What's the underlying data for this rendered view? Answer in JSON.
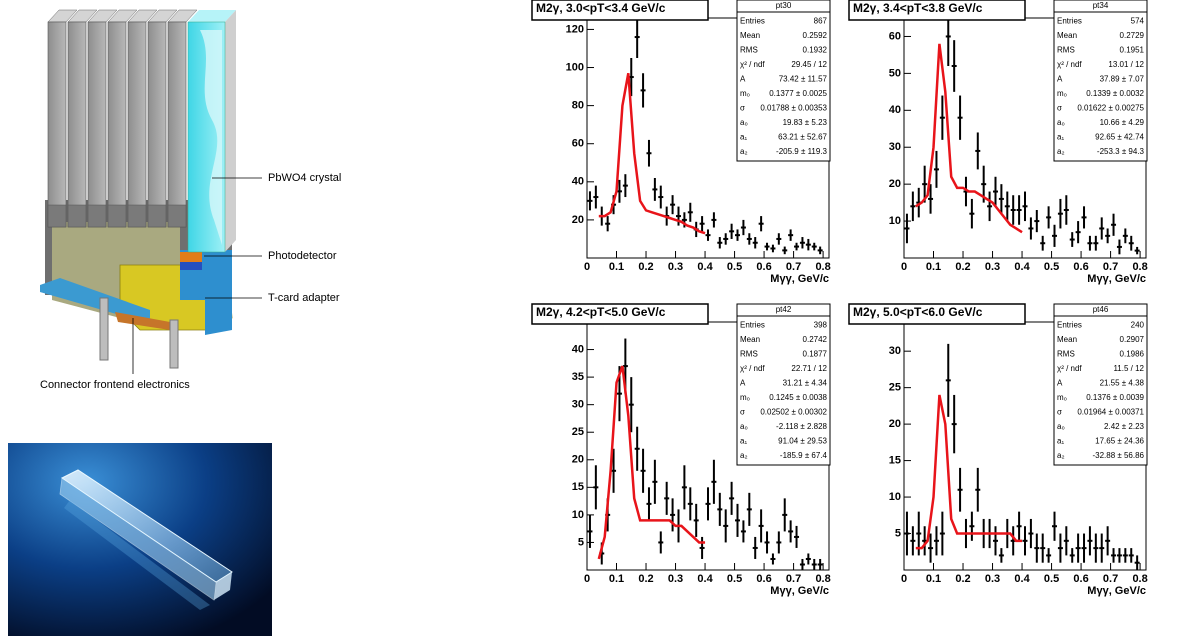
{
  "diagram": {
    "labels": [
      "PbWO4 crystal",
      "Photodetector",
      "T-card adapter",
      "Connector frontend electronics"
    ]
  },
  "chart_data": [
    {
      "type": "scatter",
      "title": "M2γ, 3.0<pT<3.4 GeV/c",
      "xlabel": "Mγγ, GeV/c",
      "stats_title": "pt30",
      "stats": [
        {
          "label": "Entries",
          "value": "867"
        },
        {
          "label": "Mean",
          "value": "0.2592"
        },
        {
          "label": "RMS",
          "value": "0.1932"
        },
        {
          "label": "χ² / ndf",
          "value": "29.45 / 12"
        },
        {
          "label": "A",
          "value": "73.42 ± 11.57"
        },
        {
          "label": "m₀",
          "value": "0.1377 ± 0.0025"
        },
        {
          "label": "σ",
          "value": "0.01788 ± 0.00353"
        },
        {
          "label": "a₀",
          "value": "19.83 ± 5.23"
        },
        {
          "label": "a₁",
          "value": "63.21 ± 52.67"
        },
        {
          "label": "a₂",
          "value": "-205.9 ± 119.3"
        }
      ],
      "xlim": [
        0,
        0.82
      ],
      "xticks": [
        0,
        0.1,
        0.2,
        0.3,
        0.4,
        0.5,
        0.6,
        0.7,
        0.8
      ],
      "ylim": [
        0,
        126
      ],
      "yticks": [
        20,
        40,
        60,
        80,
        100,
        120
      ],
      "x": [
        0.01,
        0.03,
        0.05,
        0.07,
        0.09,
        0.11,
        0.13,
        0.15,
        0.17,
        0.19,
        0.21,
        0.23,
        0.25,
        0.27,
        0.29,
        0.31,
        0.33,
        0.35,
        0.37,
        0.39,
        0.41,
        0.43,
        0.45,
        0.47,
        0.49,
        0.51,
        0.53,
        0.55,
        0.57,
        0.59,
        0.61,
        0.63,
        0.65,
        0.67,
        0.69,
        0.71,
        0.73,
        0.75,
        0.77,
        0.79
      ],
      "series": [
        {
          "color": "#000000",
          "values": [
            30,
            32,
            22,
            18,
            28,
            35,
            38,
            95,
            116,
            88,
            55,
            36,
            32,
            22,
            28,
            22,
            20,
            24,
            15,
            18,
            12,
            20,
            8,
            10,
            14,
            12,
            16,
            10,
            8,
            18,
            6,
            5,
            10,
            4,
            12,
            6,
            8,
            7,
            6,
            4
          ],
          "errors": [
            5,
            6,
            5,
            4,
            5,
            6,
            6,
            10,
            11,
            9,
            7,
            6,
            6,
            5,
            5,
            5,
            4,
            5,
            4,
            4,
            3,
            4,
            3,
            3,
            4,
            3,
            4,
            3,
            3,
            4,
            2,
            2,
            3,
            2,
            3,
            2,
            3,
            3,
            2,
            2
          ]
        }
      ],
      "fit": {
        "color": "#e8141a",
        "x": [
          0.04,
          0.06,
          0.08,
          0.1,
          0.12,
          0.14,
          0.16,
          0.18,
          0.2,
          0.22,
          0.24,
          0.26,
          0.28,
          0.3,
          0.32,
          0.34,
          0.36,
          0.38,
          0.4
        ],
        "values": [
          22,
          22,
          24,
          35,
          80,
          97,
          55,
          30,
          25,
          24,
          23,
          22,
          21,
          20,
          19,
          17,
          16,
          14,
          13
        ]
      }
    },
    {
      "type": "scatter",
      "title": "M2γ, 3.4<pT<3.8 GeV/c",
      "xlabel": "Mγγ, GeV/c",
      "stats_title": "pt34",
      "stats": [
        {
          "label": "Entries",
          "value": "574"
        },
        {
          "label": "Mean",
          "value": "0.2729"
        },
        {
          "label": "RMS",
          "value": "0.1951"
        },
        {
          "label": "χ² / ndf",
          "value": "13.01 / 12"
        },
        {
          "label": "A",
          "value": "37.89 ± 7.07"
        },
        {
          "label": "m₀",
          "value": "0.1339 ± 0.0032"
        },
        {
          "label": "σ",
          "value": "0.01622 ± 0.00275"
        },
        {
          "label": "a₀",
          "value": "10.66 ± 4.29"
        },
        {
          "label": "a₁",
          "value": "92.65 ± 42.74"
        },
        {
          "label": "a₂",
          "value": "-253.3 ± 94.3"
        }
      ],
      "xlim": [
        0,
        0.82
      ],
      "xticks": [
        0,
        0.1,
        0.2,
        0.3,
        0.4,
        0.5,
        0.6,
        0.7,
        0.8
      ],
      "ylim": [
        0,
        65
      ],
      "yticks": [
        10,
        20,
        30,
        40,
        50,
        60
      ],
      "x": [
        0.01,
        0.03,
        0.05,
        0.07,
        0.09,
        0.11,
        0.13,
        0.15,
        0.17,
        0.19,
        0.21,
        0.23,
        0.25,
        0.27,
        0.29,
        0.31,
        0.33,
        0.35,
        0.37,
        0.39,
        0.41,
        0.43,
        0.45,
        0.47,
        0.49,
        0.51,
        0.53,
        0.55,
        0.57,
        0.59,
        0.61,
        0.63,
        0.65,
        0.67,
        0.69,
        0.71,
        0.73,
        0.75,
        0.77,
        0.79
      ],
      "series": [
        {
          "color": "#000000",
          "values": [
            8,
            14,
            15,
            20,
            16,
            24,
            38,
            60,
            52,
            38,
            18,
            12,
            29,
            20,
            14,
            18,
            16,
            14,
            13,
            13,
            14,
            8,
            10,
            4,
            11,
            6,
            12,
            13,
            5,
            7,
            11,
            4,
            4,
            8,
            6,
            9,
            3,
            6,
            4,
            2
          ],
          "errors": [
            4,
            4,
            4,
            5,
            4,
            5,
            6,
            8,
            7,
            6,
            4,
            4,
            5,
            5,
            4,
            4,
            4,
            4,
            4,
            4,
            4,
            3,
            3,
            2,
            3,
            3,
            4,
            4,
            2,
            3,
            3,
            2,
            2,
            3,
            2,
            3,
            2,
            2,
            2,
            1
          ]
        }
      ],
      "fit": {
        "color": "#e8141a",
        "x": [
          0.04,
          0.06,
          0.08,
          0.1,
          0.12,
          0.14,
          0.16,
          0.18,
          0.2,
          0.22,
          0.24,
          0.26,
          0.28,
          0.3,
          0.32,
          0.34,
          0.36,
          0.38,
          0.4
        ],
        "values": [
          14,
          15,
          17,
          30,
          58,
          45,
          22,
          19,
          19,
          18,
          18,
          17,
          16,
          15,
          13,
          11,
          9,
          8,
          7
        ]
      }
    },
    {
      "type": "scatter",
      "title": "M2γ, 4.2<pT<5.0 GeV/c",
      "xlabel": "Mγγ, GeV/c",
      "stats_title": "pt42",
      "stats": [
        {
          "label": "Entries",
          "value": "398"
        },
        {
          "label": "Mean",
          "value": "0.2742"
        },
        {
          "label": "RMS",
          "value": "0.1877"
        },
        {
          "label": "χ² / ndf",
          "value": "22.71 / 12"
        },
        {
          "label": "A",
          "value": "31.21 ± 4.34"
        },
        {
          "label": "m₀",
          "value": "0.1245 ± 0.0038"
        },
        {
          "label": "σ",
          "value": "0.02502 ± 0.00302"
        },
        {
          "label": "a₀",
          "value": "-2.118 ± 2.828"
        },
        {
          "label": "a₁",
          "value": "91.04 ± 29.53"
        },
        {
          "label": "a₂",
          "value": "-185.9 ± 67.4"
        }
      ],
      "xlim": [
        0,
        0.82
      ],
      "xticks": [
        0,
        0.1,
        0.2,
        0.3,
        0.4,
        0.5,
        0.6,
        0.7,
        0.8
      ],
      "ylim": [
        0,
        45
      ],
      "yticks": [
        5,
        10,
        15,
        20,
        25,
        30,
        35,
        40
      ],
      "x": [
        0.01,
        0.03,
        0.05,
        0.07,
        0.09,
        0.11,
        0.13,
        0.15,
        0.17,
        0.19,
        0.21,
        0.23,
        0.25,
        0.27,
        0.29,
        0.31,
        0.33,
        0.35,
        0.37,
        0.39,
        0.41,
        0.43,
        0.45,
        0.47,
        0.49,
        0.51,
        0.53,
        0.55,
        0.57,
        0.59,
        0.61,
        0.63,
        0.65,
        0.67,
        0.69,
        0.71,
        0.73,
        0.75,
        0.77,
        0.79
      ],
      "series": [
        {
          "color": "#000000",
          "values": [
            7,
            15,
            3,
            10,
            18,
            32,
            37,
            30,
            22,
            18,
            12,
            16,
            5,
            13,
            10,
            8,
            15,
            12,
            9,
            4,
            12,
            16,
            11,
            8,
            13,
            9,
            7,
            11,
            4,
            8,
            5,
            2,
            5,
            10,
            7,
            6,
            1,
            2,
            1,
            1
          ],
          "errors": [
            3,
            4,
            2,
            3,
            4,
            5,
            5,
            5,
            4,
            4,
            3,
            4,
            2,
            3,
            3,
            3,
            4,
            3,
            3,
            2,
            3,
            4,
            3,
            3,
            3,
            3,
            2,
            3,
            2,
            3,
            2,
            1,
            2,
            3,
            2,
            2,
            1,
            1,
            1,
            1
          ]
        }
      ],
      "fit": {
        "color": "#e8141a",
        "x": [
          0.04,
          0.06,
          0.08,
          0.1,
          0.12,
          0.14,
          0.16,
          0.18,
          0.2,
          0.22,
          0.24,
          0.26,
          0.28,
          0.3,
          0.32,
          0.34,
          0.36,
          0.38,
          0.4
        ],
        "values": [
          2,
          6,
          18,
          34,
          37,
          28,
          13,
          9,
          9,
          9,
          9,
          9,
          9,
          8,
          8,
          7,
          6,
          5,
          5
        ]
      }
    },
    {
      "type": "scatter",
      "title": "M2γ, 5.0<pT<6.0 GeV/c",
      "xlabel": "Mγγ, GeV/c",
      "stats_title": "pt46",
      "stats": [
        {
          "label": "Entries",
          "value": "240"
        },
        {
          "label": "Mean",
          "value": "0.2907"
        },
        {
          "label": "RMS",
          "value": "0.1986"
        },
        {
          "label": "χ² / ndf",
          "value": "11.5 / 12"
        },
        {
          "label": "A",
          "value": "21.55 ± 4.38"
        },
        {
          "label": "m₀",
          "value": "0.1376 ± 0.0039"
        },
        {
          "label": "σ",
          "value": "0.01964 ± 0.00371"
        },
        {
          "label": "a₀",
          "value": "2.42 ± 2.23"
        },
        {
          "label": "a₁",
          "value": "17.65 ± 24.36"
        },
        {
          "label": "a₂",
          "value": "-32.88 ± 56.86"
        }
      ],
      "xlim": [
        0,
        0.82
      ],
      "xticks": [
        0,
        0.1,
        0.2,
        0.3,
        0.4,
        0.5,
        0.6,
        0.7,
        0.8
      ],
      "ylim": [
        0,
        34
      ],
      "yticks": [
        5,
        10,
        15,
        20,
        25,
        30
      ],
      "x": [
        0.01,
        0.03,
        0.05,
        0.07,
        0.09,
        0.11,
        0.13,
        0.15,
        0.17,
        0.19,
        0.21,
        0.23,
        0.25,
        0.27,
        0.29,
        0.31,
        0.33,
        0.35,
        0.37,
        0.39,
        0.41,
        0.43,
        0.45,
        0.47,
        0.49,
        0.51,
        0.53,
        0.55,
        0.57,
        0.59,
        0.61,
        0.63,
        0.65,
        0.67,
        0.69,
        0.71,
        0.73,
        0.75,
        0.77,
        0.79
      ],
      "series": [
        {
          "color": "#000000",
          "values": [
            5,
            4,
            5,
            4,
            3,
            4,
            5,
            26,
            20,
            11,
            5,
            6,
            11,
            5,
            5,
            4,
            2,
            5,
            4,
            6,
            4,
            5,
            3,
            3,
            2,
            6,
            3,
            4,
            2,
            3,
            3,
            4,
            3,
            3,
            4,
            2,
            2,
            2,
            2,
            1
          ],
          "errors": [
            3,
            2,
            3,
            2,
            2,
            2,
            3,
            5,
            4,
            3,
            2,
            2,
            3,
            2,
            2,
            2,
            1,
            2,
            2,
            2,
            2,
            2,
            2,
            2,
            1,
            2,
            2,
            2,
            1,
            2,
            2,
            2,
            2,
            2,
            2,
            1,
            1,
            1,
            1,
            1
          ]
        }
      ],
      "fit": {
        "color": "#e8141a",
        "x": [
          0.04,
          0.06,
          0.08,
          0.1,
          0.12,
          0.14,
          0.16,
          0.18,
          0.2,
          0.22,
          0.24,
          0.26,
          0.28,
          0.3,
          0.32,
          0.34,
          0.36,
          0.38,
          0.4
        ],
        "values": [
          3,
          3,
          4,
          10,
          24,
          20,
          7,
          5,
          5,
          5,
          5,
          5,
          5,
          5,
          5,
          5,
          5,
          4,
          4
        ]
      }
    }
  ]
}
